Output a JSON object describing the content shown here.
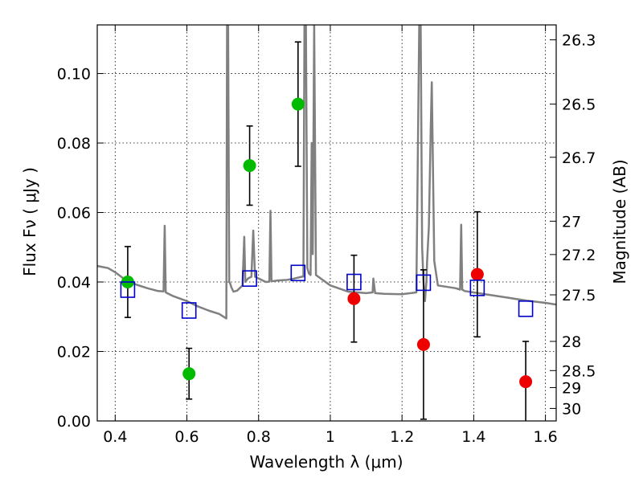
{
  "chart_data": {
    "type": "scatter",
    "title": "",
    "xlabel": "Wavelength  λ (μm)",
    "ylabel": "Flux  Fν  ( μJy )",
    "ylabel_right": "Magnitude (AB)",
    "xlim": [
      0.35,
      1.63
    ],
    "ylim": [
      0.0,
      0.114
    ],
    "grid": true,
    "x_ticks": [
      0.4,
      0.6,
      0.8,
      1.0,
      1.2,
      1.4,
      1.6
    ],
    "x_tick_labels": [
      "0.4",
      "0.6",
      "0.8",
      "1",
      "1.2",
      "1.4",
      "1.6"
    ],
    "y_ticks": [
      0.0,
      0.02,
      0.04,
      0.06,
      0.08,
      0.1
    ],
    "y_tick_labels": [
      "0.00",
      "0.02",
      "0.04",
      "0.06",
      "0.08",
      "0.10"
    ],
    "right_ticks": [
      {
        "label": "26.3",
        "flux": 0.1097
      },
      {
        "label": "26.5",
        "flux": 0.0912
      },
      {
        "label": "26.7",
        "flux": 0.0759
      },
      {
        "label": "27",
        "flux": 0.0575
      },
      {
        "label": "27.2",
        "flux": 0.0479
      },
      {
        "label": "27.5",
        "flux": 0.0363
      },
      {
        "label": "28",
        "flux": 0.0229
      },
      {
        "label": "28.5",
        "flux": 0.0145
      },
      {
        "label": "29",
        "flux": 0.0096
      },
      {
        "label": "30",
        "flux": 0.0036
      }
    ],
    "series": [
      {
        "marker": "circle",
        "color": "#00bb00",
        "points": [
          {
            "x": 0.435,
            "y": 0.04,
            "err": 0.0102
          },
          {
            "x": 0.606,
            "y": 0.0136,
            "err": 0.0073
          },
          {
            "x": 0.775,
            "y": 0.0735,
            "err": 0.0114
          },
          {
            "x": 0.91,
            "y": 0.0912,
            "err": 0.0179
          }
        ]
      },
      {
        "marker": "circle",
        "color": "#ee0000",
        "points": [
          {
            "x": 1.066,
            "y": 0.0352,
            "err": 0.0125
          },
          {
            "x": 1.26,
            "y": 0.022,
            "err": 0.0215
          },
          {
            "x": 1.41,
            "y": 0.0422,
            "err": 0.018
          },
          {
            "x": 1.545,
            "y": 0.0113,
            "err": 0.0116
          }
        ]
      },
      {
        "marker": "open-square",
        "color": "#0000cc",
        "points": [
          {
            "x": 0.435,
            "y": 0.0378
          },
          {
            "x": 0.606,
            "y": 0.0318
          },
          {
            "x": 0.775,
            "y": 0.041
          },
          {
            "x": 0.91,
            "y": 0.0426
          },
          {
            "x": 1.066,
            "y": 0.04
          },
          {
            "x": 1.26,
            "y": 0.0398
          },
          {
            "x": 1.41,
            "y": 0.0383
          },
          {
            "x": 1.545,
            "y": 0.0323
          }
        ]
      },
      {
        "type": "line",
        "color": "#808080",
        "x": [
          0.35,
          0.38,
          0.4,
          0.43,
          0.46,
          0.49,
          0.52,
          0.535,
          0.538,
          0.541,
          0.56,
          0.6,
          0.63,
          0.66,
          0.69,
          0.705,
          0.71,
          0.712,
          0.715,
          0.718,
          0.721,
          0.724,
          0.727,
          0.73,
          0.74,
          0.755,
          0.76,
          0.763,
          0.77,
          0.78,
          0.785,
          0.79,
          0.82,
          0.83,
          0.833,
          0.836,
          0.85,
          0.88,
          0.9,
          0.92,
          0.925,
          0.928,
          0.932,
          0.936,
          0.94,
          0.945,
          0.948,
          0.951,
          0.955,
          0.96,
          1.0,
          1.05,
          1.1,
          1.118,
          1.12,
          1.125,
          1.15,
          1.2,
          1.24,
          1.248,
          1.252,
          1.256,
          1.26,
          1.264,
          1.268,
          1.27,
          1.275,
          1.28,
          1.283,
          1.29,
          1.3,
          1.35,
          1.362,
          1.365,
          1.368,
          1.375,
          1.4,
          1.45,
          1.5,
          1.55,
          1.6,
          1.63
        ],
        "y": [
          0.0446,
          0.044,
          0.0428,
          0.0405,
          0.0392,
          0.0382,
          0.0374,
          0.0373,
          0.0562,
          0.037,
          0.036,
          0.0345,
          0.033,
          0.0318,
          0.0308,
          0.0298,
          0.0295,
          0.114,
          0.114,
          0.04,
          0.0395,
          0.0385,
          0.0378,
          0.0372,
          0.0375,
          0.039,
          0.053,
          0.04,
          0.041,
          0.0415,
          0.0548,
          0.0415,
          0.04,
          0.0401,
          0.0605,
          0.0402,
          0.0404,
          0.0406,
          0.041,
          0.0415,
          0.0416,
          0.114,
          0.114,
          0.044,
          0.0425,
          0.042,
          0.08,
          0.048,
          0.114,
          0.042,
          0.039,
          0.0372,
          0.0368,
          0.037,
          0.041,
          0.0368,
          0.0366,
          0.0365,
          0.037,
          0.114,
          0.114,
          0.05,
          0.04,
          0.0345,
          0.04,
          0.046,
          0.056,
          0.084,
          0.0975,
          0.046,
          0.039,
          0.0382,
          0.0378,
          0.0565,
          0.0378,
          0.0374,
          0.037,
          0.0362,
          0.0354,
          0.0346,
          0.034,
          0.0335
        ]
      }
    ]
  }
}
